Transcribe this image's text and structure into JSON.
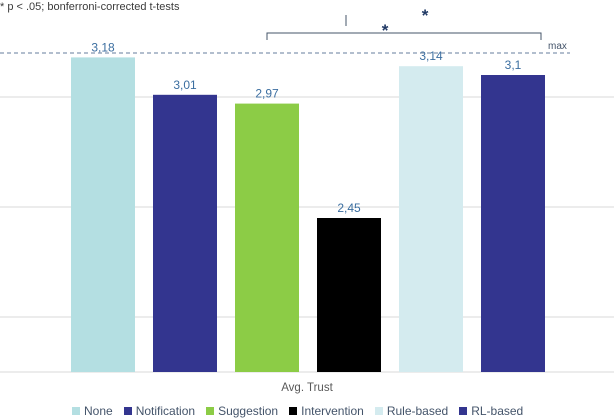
{
  "note": "* p < .05; bonferroni-corrected t-tests",
  "chart_data": {
    "type": "bar",
    "categories": [
      "None",
      "Notification",
      "Suggestion",
      "Intervention",
      "Rule-based",
      "RL-based"
    ],
    "values": [
      3.18,
      3.01,
      2.97,
      2.45,
      3.14,
      3.1
    ],
    "value_labels": [
      "3,18",
      "3,01",
      "2,97",
      "2,45",
      "3,14",
      "3,1"
    ],
    "colors": [
      "#b4dfe2",
      "#33358f",
      "#8ccc46",
      "#000000",
      "#d4ebef",
      "#33358f"
    ],
    "xlabel": "Avg. Trust",
    "ylabel": "",
    "ylim": [
      1.75,
      3.25
    ],
    "grid": true,
    "reference_line": {
      "value": 3.2,
      "label": "max"
    },
    "significance": [
      {
        "from": "Notification",
        "to": "RL-based",
        "label": "*"
      }
    ],
    "legend_position": "bottom"
  }
}
